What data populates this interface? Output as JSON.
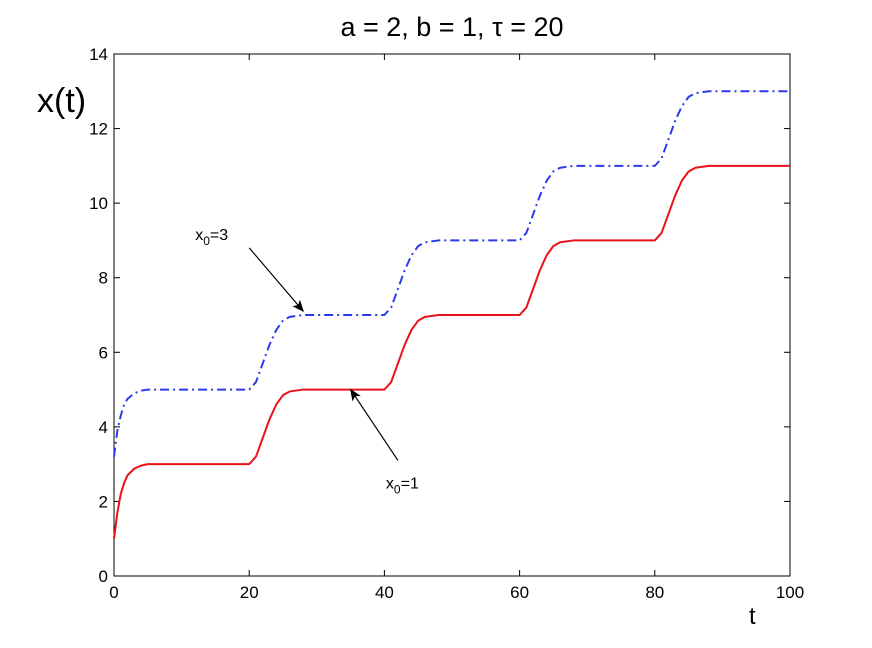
{
  "chart_data": {
    "type": "line",
    "title": "a = 2, b = 1, τ = 20",
    "xlabel": "t",
    "ylabel": "x(t)",
    "xlim": [
      0,
      100
    ],
    "ylim": [
      0,
      14
    ],
    "xticks": [
      0,
      20,
      40,
      60,
      80,
      100
    ],
    "yticks": [
      0,
      2,
      4,
      6,
      8,
      10,
      12,
      14
    ],
    "xtick_labels": [
      "0",
      "20",
      "40",
      "60",
      "80",
      "100"
    ],
    "ytick_labels": [
      "0",
      "2",
      "4",
      "6",
      "8",
      "10",
      "12",
      "14"
    ],
    "grid": false,
    "legend": "none",
    "series": [
      {
        "color": "#2b3bea",
        "style": "dash-dot",
        "x": [
          0,
          0.5,
          1,
          1.5,
          2,
          3,
          4,
          5,
          20,
          21,
          22,
          23,
          24,
          25,
          26,
          28,
          40,
          41,
          42,
          43,
          44,
          45,
          46,
          48,
          60,
          61,
          62,
          63,
          64,
          65,
          66,
          68,
          80,
          81,
          82,
          83,
          84,
          85,
          86,
          88,
          100
        ],
        "y": [
          3.2,
          3.9,
          4.3,
          4.6,
          4.75,
          4.9,
          4.97,
          5.0,
          5.0,
          5.2,
          5.7,
          6.2,
          6.6,
          6.85,
          6.95,
          7.0,
          7.0,
          7.2,
          7.7,
          8.2,
          8.6,
          8.85,
          8.95,
          9.0,
          9.0,
          9.2,
          9.7,
          10.2,
          10.6,
          10.85,
          10.95,
          11.0,
          11.0,
          11.2,
          11.7,
          12.2,
          12.6,
          12.85,
          12.95,
          13.0,
          13.0
        ]
      },
      {
        "color": "#e8121a",
        "style": "solid",
        "x": [
          0,
          0.5,
          1,
          1.5,
          2,
          3,
          4,
          5,
          20,
          21,
          22,
          23,
          24,
          25,
          26,
          28,
          40,
          41,
          42,
          43,
          44,
          45,
          46,
          48,
          60,
          61,
          62,
          63,
          64,
          65,
          66,
          68,
          80,
          81,
          82,
          83,
          84,
          85,
          86,
          88,
          100
        ],
        "y": [
          1.0,
          1.7,
          2.2,
          2.5,
          2.7,
          2.88,
          2.96,
          3.0,
          3.0,
          3.2,
          3.7,
          4.2,
          4.6,
          4.85,
          4.95,
          5.0,
          5.0,
          5.2,
          5.7,
          6.2,
          6.6,
          6.85,
          6.95,
          7.0,
          7.0,
          7.2,
          7.7,
          8.2,
          8.6,
          8.85,
          8.95,
          9.0,
          9.0,
          9.2,
          9.7,
          10.2,
          10.6,
          10.85,
          10.95,
          11.0,
          11.0
        ]
      }
    ],
    "annotations": [
      {
        "label_main": "x",
        "label_sub": "0",
        "label_rest": "=3",
        "arrow_from": [
          20,
          8.8
        ],
        "arrow_to": [
          28,
          7.1
        ]
      },
      {
        "label_main": "x",
        "label_sub": "0",
        "label_rest": "=1",
        "arrow_from": [
          42,
          3.1
        ],
        "arrow_to": [
          35,
          5.0
        ]
      }
    ]
  }
}
